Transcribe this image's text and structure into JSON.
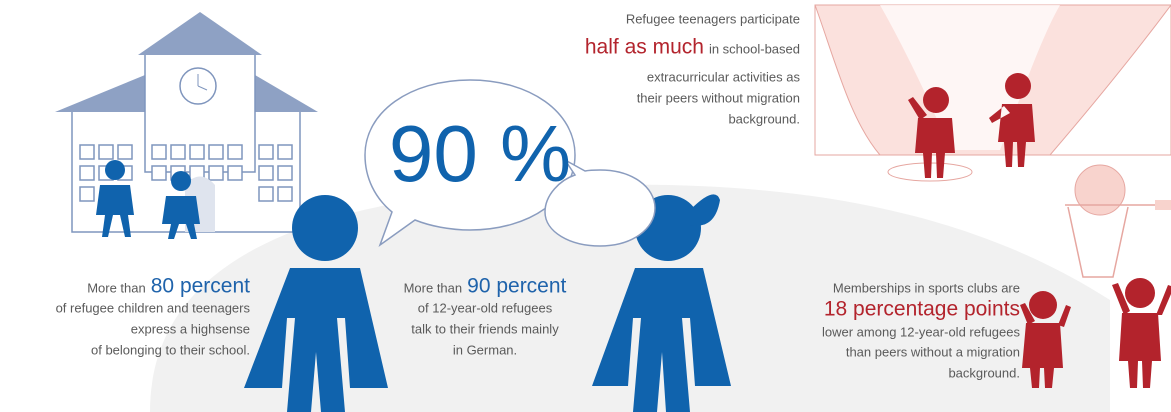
{
  "extracurricular_fact": {
    "intro": "Refugee teenagers participate",
    "highlight": "half as much",
    "highlight_tail": "in school-based",
    "lines": [
      "extracurricular activities as",
      "their peers without migration",
      "background."
    ]
  },
  "speech_bubble": {
    "text": "90 %"
  },
  "school_fact": {
    "intro": "More than",
    "highlight": "80 percent",
    "lines": [
      "of refugee children and teenagers",
      "express a highsense",
      "of belonging to their school."
    ]
  },
  "language_fact": {
    "intro": "More than",
    "highlight": "90 percent",
    "lines": [
      "of 12-year-old refugees",
      "talk to their friends mainly",
      "in German."
    ]
  },
  "sports_fact": {
    "intro": "Memberships in sports clubs are",
    "highlight": "18 percentage points",
    "lines": [
      "lower among 12-year-old refugees",
      "than peers without a migration",
      "background."
    ]
  }
}
